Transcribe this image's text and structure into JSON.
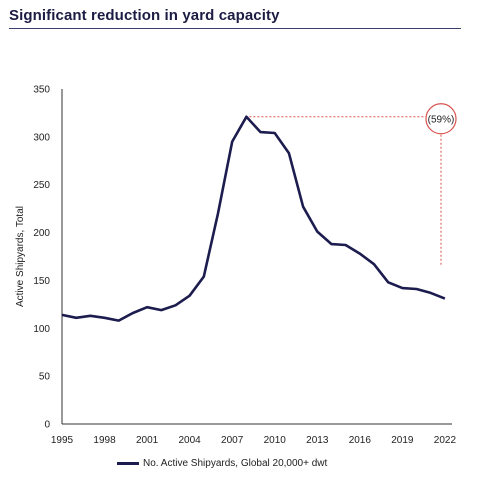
{
  "title": "Significant reduction in yard capacity",
  "colors": {
    "line": "#1c1c4f",
    "annotation": "#d9534f",
    "axis": "#333333"
  },
  "chart_data": {
    "type": "line",
    "title": "Significant reduction in yard capacity",
    "xlabel": "",
    "ylabel": "Active Shipyards, Total",
    "xlim": [
      1995,
      2022.5
    ],
    "ylim": [
      0,
      350
    ],
    "x_ticks": [
      1995,
      1998,
      2001,
      2004,
      2007,
      2010,
      2013,
      2016,
      2019,
      2022
    ],
    "y_ticks": [
      0,
      50,
      100,
      150,
      200,
      250,
      300,
      350
    ],
    "grid": false,
    "legend": "bottom",
    "series": [
      {
        "name": "No. Active Shipyards, Global 20,000+ dwt",
        "x": [
          1995,
          1996,
          1997,
          1998,
          1999,
          2000,
          2001,
          2002,
          2003,
          2004,
          2005,
          2006,
          2007,
          2008,
          2009,
          2010,
          2011,
          2012,
          2013,
          2014,
          2015,
          2016,
          2017,
          2018,
          2019,
          2020,
          2021,
          2022
        ],
        "values": [
          114,
          111,
          113,
          111,
          108,
          116,
          122,
          119,
          124,
          134,
          154,
          220,
          295,
          321,
          305,
          304,
          283,
          227,
          201,
          188,
          187,
          178,
          167,
          148,
          142,
          141,
          137,
          131
        ]
      }
    ],
    "annotation": {
      "text": "(59%)",
      "from_value": 321,
      "to_value": 131
    }
  }
}
